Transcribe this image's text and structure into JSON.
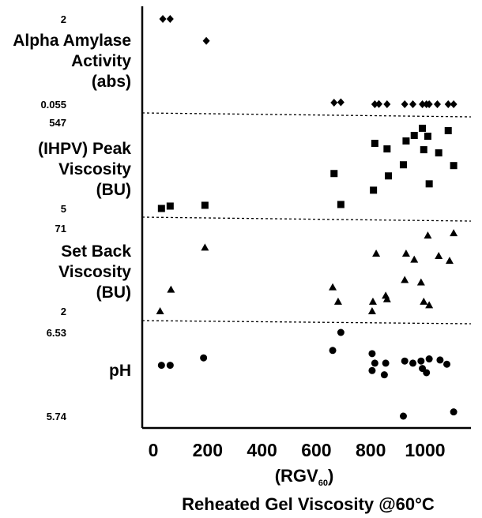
{
  "chart_data": {
    "type": "scatter",
    "xlabel": "(RGV60)",
    "xlabel_main": "(RGV",
    "xlabel_sub": "60",
    "xlabel_close": ")",
    "caption": "Reheated Gel Viscosity @60°C",
    "x_ticks": [
      "0",
      "200",
      "400",
      "600",
      "800",
      "1000"
    ],
    "xlim": [
      -40,
      1130
    ],
    "panels": [
      {
        "name": "Alpha Amylase Activity (abs)",
        "label_lines": [
          "Alpha Amylase",
          "Activity",
          "(abs)"
        ],
        "marker": "diamond",
        "y_tick_labels": [
          "2",
          "0.055"
        ],
        "y_ticks": [
          2,
          0.055
        ],
        "ylim": [
          0.055,
          2
        ],
        "points": [
          [
            35,
            2.0
          ],
          [
            62,
            2.0
          ],
          [
            195,
            1.5
          ],
          [
            665,
            0.09
          ],
          [
            690,
            0.1
          ],
          [
            815,
            0.055
          ],
          [
            830,
            0.06
          ],
          [
            860,
            0.055
          ],
          [
            925,
            0.055
          ],
          [
            955,
            0.055
          ],
          [
            990,
            0.055
          ],
          [
            1005,
            0.055
          ],
          [
            1015,
            0.055
          ],
          [
            1045,
            0.055
          ],
          [
            1085,
            0.055
          ],
          [
            1105,
            0.055
          ]
        ]
      },
      {
        "name": "(IHPV) Peak Viscosity (BU)",
        "label_lines": [
          "(IHPV) Peak",
          "Viscosity",
          "(BU)"
        ],
        "marker": "square",
        "y_tick_labels": [
          "547",
          "5"
        ],
        "y_ticks": [
          547,
          5
        ],
        "ylim": [
          5,
          547
        ],
        "points": [
          [
            30,
            5
          ],
          [
            62,
            20
          ],
          [
            190,
            25
          ],
          [
            665,
            225
          ],
          [
            690,
            30
          ],
          [
            810,
            120
          ],
          [
            815,
            415
          ],
          [
            860,
            380
          ],
          [
            865,
            210
          ],
          [
            920,
            280
          ],
          [
            930,
            430
          ],
          [
            960,
            465
          ],
          [
            990,
            510
          ],
          [
            995,
            375
          ],
          [
            1010,
            460
          ],
          [
            1015,
            160
          ],
          [
            1050,
            355
          ],
          [
            1085,
            495
          ],
          [
            1105,
            275
          ]
        ]
      },
      {
        "name": "Set Back Viscosity (BU)",
        "label_lines": [
          "Set Back",
          "Viscosity",
          "(BU)"
        ],
        "marker": "triangle",
        "y_tick_labels": [
          "71",
          "2"
        ],
        "y_ticks": [
          71,
          2
        ],
        "ylim": [
          2,
          71
        ],
        "points": [
          [
            25,
            2
          ],
          [
            65,
            20
          ],
          [
            190,
            55
          ],
          [
            660,
            22
          ],
          [
            680,
            10
          ],
          [
            805,
            2
          ],
          [
            808,
            10
          ],
          [
            820,
            50
          ],
          [
            855,
            15
          ],
          [
            860,
            12
          ],
          [
            925,
            28
          ],
          [
            930,
            50
          ],
          [
            960,
            45
          ],
          [
            985,
            26
          ],
          [
            995,
            10
          ],
          [
            1010,
            65
          ],
          [
            1015,
            7
          ],
          [
            1050,
            48
          ],
          [
            1090,
            44
          ],
          [
            1105,
            67
          ]
        ]
      },
      {
        "name": "pH",
        "label_lines": [
          "pH"
        ],
        "marker": "circle",
        "y_tick_labels": [
          "6.53",
          "5.74"
        ],
        "y_ticks": [
          6.53,
          5.74
        ],
        "ylim": [
          5.74,
          6.53
        ],
        "points": [
          [
            30,
            6.22
          ],
          [
            62,
            6.22
          ],
          [
            185,
            6.29
          ],
          [
            660,
            6.36
          ],
          [
            690,
            6.53
          ],
          [
            805,
            6.33
          ],
          [
            805,
            6.17
          ],
          [
            815,
            6.24
          ],
          [
            850,
            6.13
          ],
          [
            855,
            6.24
          ],
          [
            920,
            5.74
          ],
          [
            925,
            6.26
          ],
          [
            955,
            6.24
          ],
          [
            985,
            6.26
          ],
          [
            990,
            6.19
          ],
          [
            1005,
            6.15
          ],
          [
            1015,
            6.28
          ],
          [
            1055,
            6.27
          ],
          [
            1080,
            6.23
          ],
          [
            1105,
            5.78
          ]
        ]
      }
    ]
  }
}
